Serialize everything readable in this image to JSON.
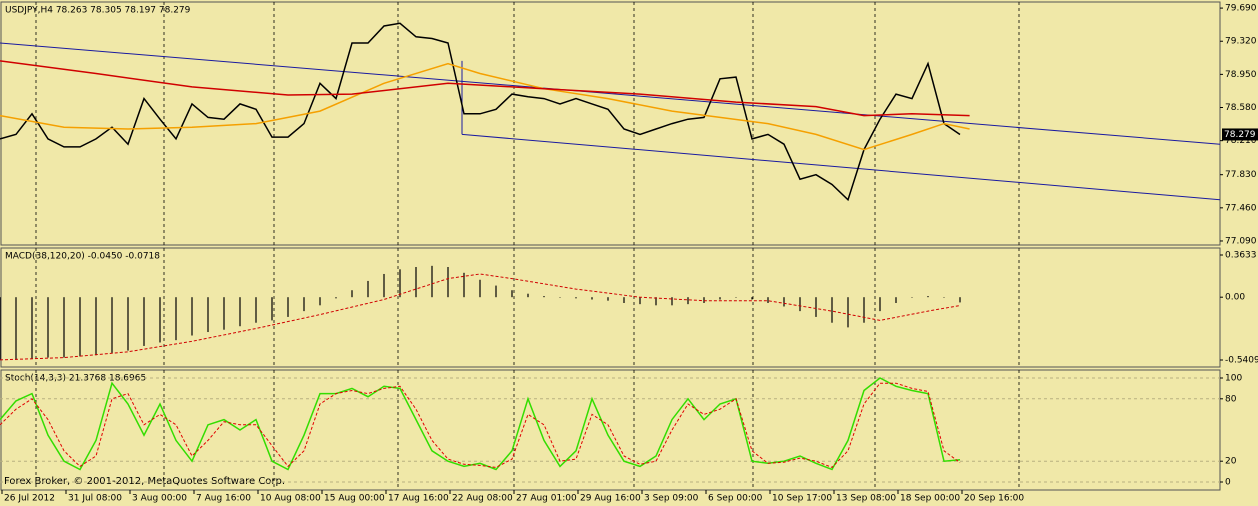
{
  "chart_data": [
    {
      "type": "line",
      "title": "USDJPY,H4 78.263 78.305 78.197 78.279",
      "xlim": [
        0,
        76.25
      ],
      "ylim": [
        77.045,
        79.758
      ],
      "yticks": [
        {
          "value": 79.69,
          "label": "79.690"
        },
        {
          "value": 79.32,
          "label": "79.320"
        },
        {
          "value": 78.95,
          "label": "78.950"
        },
        {
          "value": 78.58,
          "label": "78.580"
        },
        {
          "value": 78.21,
          "label": "78.210"
        },
        {
          "value": 77.83,
          "label": "77.830"
        },
        {
          "value": 77.46,
          "label": "77.460"
        },
        {
          "value": 77.09,
          "label": "77.090"
        }
      ],
      "last_price": {
        "value": 78.279,
        "label": "78.279"
      },
      "series": [
        {
          "type": "line",
          "color": "#000000",
          "values": [
            78.23,
            78.28,
            78.51,
            78.23,
            78.14,
            78.14,
            78.23,
            78.36,
            78.17,
            78.68,
            78.45,
            78.23,
            78.62,
            78.47,
            78.45,
            78.62,
            78.56,
            78.25,
            78.25,
            78.4,
            78.85,
            78.68,
            79.3,
            79.3,
            79.49,
            79.52,
            79.37,
            79.35,
            79.3,
            78.51,
            78.51,
            78.56,
            78.73,
            78.7,
            78.68,
            78.62,
            78.68,
            78.62,
            78.56,
            78.34,
            78.28,
            78.34,
            78.4,
            78.45,
            78.47,
            78.9,
            78.92,
            78.23,
            78.28,
            78.17,
            77.78,
            77.83,
            77.72,
            77.55,
            78.11,
            78.45,
            78.73,
            78.68,
            79.07,
            78.4,
            78.279
          ]
        },
        {
          "type": "line",
          "color": "#f5a000",
          "x": [
            0,
            4,
            8,
            12,
            16,
            20,
            24,
            28,
            30,
            34,
            38,
            42,
            45,
            48,
            51,
            54,
            57,
            59,
            60.6
          ],
          "values": [
            78.49,
            78.36,
            78.34,
            78.36,
            78.4,
            78.54,
            78.85,
            79.07,
            78.96,
            78.79,
            78.68,
            78.54,
            78.47,
            78.4,
            78.28,
            78.11,
            78.28,
            78.4,
            78.34
          ]
        },
        {
          "type": "line",
          "color": "#d00000",
          "x": [
            0,
            6,
            12,
            18,
            22,
            28,
            34,
            40,
            46,
            51,
            54,
            57,
            60.6
          ],
          "values": [
            79.1,
            78.96,
            78.81,
            78.72,
            78.73,
            78.85,
            78.79,
            78.73,
            78.64,
            78.59,
            78.49,
            78.51,
            78.49
          ]
        }
      ],
      "trendline_color": "#1a1aa0",
      "trendlines": [
        {
          "x": [
            0,
            76.25
          ],
          "y": [
            79.3,
            78.17
          ]
        },
        {
          "x": [
            28.875,
            76.25
          ],
          "y": [
            78.28,
            77.55
          ]
        },
        {
          "x": [
            28.875,
            28.875
          ],
          "y": [
            78.28,
            79.1
          ]
        }
      ]
    },
    {
      "type": "bar",
      "title": "MACD(38,120,20) -0.0450 -0.0718",
      "xlim": [
        0,
        76.25
      ],
      "ylim": [
        -0.6012,
        0.4236
      ],
      "yticks": [
        0.3633,
        {
          "value": 0,
          "label": "0.00"
        },
        -0.5409
      ],
      "series": [
        {
          "type": "bar",
          "color": "#000000",
          "values": [
            -0.54,
            -0.54,
            -0.53,
            -0.52,
            -0.52,
            -0.51,
            -0.5,
            -0.48,
            -0.46,
            -0.42,
            -0.39,
            -0.37,
            -0.33,
            -0.3,
            -0.28,
            -0.25,
            -0.22,
            -0.2,
            -0.17,
            -0.12,
            -0.07,
            -0.01,
            0.06,
            0.14,
            0.2,
            0.24,
            0.26,
            0.27,
            0.26,
            0.21,
            0.15,
            0.1,
            0.06,
            0.03,
            0.01,
            0.0,
            -0.01,
            -0.02,
            -0.03,
            -0.05,
            -0.06,
            -0.07,
            -0.07,
            -0.06,
            -0.05,
            -0.02,
            0.0,
            -0.02,
            -0.05,
            -0.08,
            -0.12,
            -0.17,
            -0.22,
            -0.26,
            -0.22,
            -0.12,
            -0.05,
            0.0,
            0.01,
            0.0,
            -0.045
          ]
        },
        {
          "type": "line",
          "dash": true,
          "color": "#d00000",
          "x": [
            0,
            4,
            8,
            12,
            16,
            20,
            24,
            28,
            30,
            32,
            36,
            40,
            44,
            48,
            52,
            55,
            58,
            60
          ],
          "values": [
            -0.54,
            -0.52,
            -0.47,
            -0.38,
            -0.27,
            -0.15,
            -0.02,
            0.16,
            0.2,
            0.16,
            0.07,
            0.0,
            -0.03,
            -0.03,
            -0.12,
            -0.2,
            -0.12,
            -0.0718
          ]
        }
      ]
    },
    {
      "type": "line",
      "title": "Stoch(14,3,3) 21.3768 18.6965",
      "xlim": [
        0,
        76.25
      ],
      "ylim": [
        -7.7,
        107.7
      ],
      "yticks": [
        100,
        80,
        20,
        0
      ],
      "footer": "Forex Broker, © 2001-2012, MetaQuotes Software Corp.",
      "xticks": [
        {
          "value": 0.125,
          "label": "26 Jul 2012"
        },
        {
          "value": 4.125,
          "label": "31 Jul 08:00"
        },
        {
          "value": 8.125,
          "label": "3 Aug 00:00"
        },
        {
          "value": 12.125,
          "label": "7 Aug 16:00"
        },
        {
          "value": 16.125,
          "label": "10 Aug 08:00"
        },
        {
          "value": 20.125,
          "label": "15 Aug 00:00"
        },
        {
          "value": 24.125,
          "label": "17 Aug 16:00"
        },
        {
          "value": 28.125,
          "label": "22 Aug 08:00"
        },
        {
          "value": 32.125,
          "label": "27 Aug 01:00"
        },
        {
          "value": 36.125,
          "label": "29 Aug 16:00"
        },
        {
          "value": 40.125,
          "label": "3 Sep 09:00"
        },
        {
          "value": 44.125,
          "label": "6 Sep 00:00"
        },
        {
          "value": 48.125,
          "label": "10 Sep 17:00"
        },
        {
          "value": 52.125,
          "label": "13 Sep 08:00"
        },
        {
          "value": 56.125,
          "label": "18 Sep 00:00"
        },
        {
          "value": 60.125,
          "label": "20 Sep 16:00"
        }
      ],
      "series": [
        {
          "type": "line",
          "color": "#33dd00",
          "values": [
            60,
            78,
            85,
            45,
            20,
            12,
            40,
            95,
            75,
            45,
            75,
            40,
            20,
            55,
            60,
            50,
            60,
            20,
            12,
            45,
            85,
            85,
            90,
            82,
            92,
            90,
            60,
            30,
            20,
            15,
            18,
            12,
            30,
            80,
            40,
            15,
            30,
            80,
            45,
            20,
            15,
            25,
            60,
            80,
            60,
            75,
            80,
            20,
            18,
            20,
            25,
            18,
            12,
            40,
            88,
            100,
            92,
            88,
            85,
            20,
            21.3768
          ]
        },
        {
          "type": "line",
          "dash": true,
          "color": "#e00000",
          "values": [
            55,
            70,
            80,
            60,
            30,
            15,
            25,
            80,
            85,
            55,
            65,
            55,
            25,
            40,
            58,
            55,
            55,
            35,
            15,
            30,
            75,
            85,
            88,
            85,
            90,
            92,
            70,
            40,
            22,
            17,
            16,
            14,
            22,
            65,
            55,
            20,
            22,
            65,
            55,
            25,
            17,
            20,
            50,
            75,
            65,
            70,
            80,
            30,
            18,
            19,
            23,
            20,
            14,
            30,
            75,
            95,
            95,
            90,
            87,
            30,
            18.6965
          ]
        }
      ]
    }
  ]
}
